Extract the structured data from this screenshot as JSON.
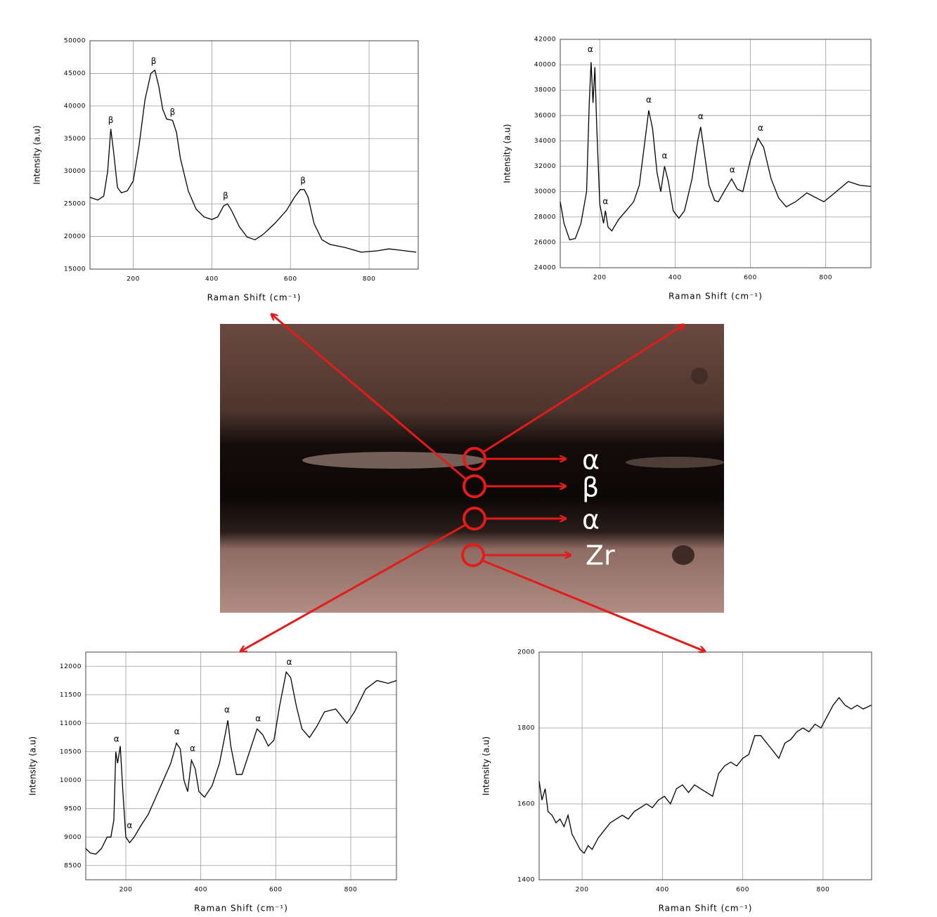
{
  "chart_data": [
    {
      "type": "line",
      "xlabel": "Raman Shift (cm⁻¹)",
      "ylabel": "Intensity (a.u)",
      "color": "#000000",
      "grid": true,
      "xlim": [
        90,
        925
      ],
      "ylim": [
        15000,
        50000
      ],
      "xticks": [
        200,
        400,
        600,
        800
      ],
      "yticks": [
        15000,
        20000,
        25000,
        30000,
        35000,
        40000,
        45000,
        50000
      ],
      "x": [
        90,
        110,
        125,
        135,
        143,
        150,
        160,
        170,
        185,
        200,
        215,
        230,
        245,
        255,
        265,
        275,
        285,
        300,
        310,
        320,
        340,
        360,
        380,
        400,
        415,
        430,
        440,
        450,
        470,
        490,
        510,
        530,
        560,
        590,
        610,
        625,
        635,
        645,
        660,
        680,
        700,
        740,
        780,
        820,
        850,
        880,
        920
      ],
      "values": [
        26000,
        25600,
        26200,
        30000,
        36500,
        33000,
        27500,
        26700,
        27000,
        28500,
        34000,
        41000,
        45000,
        45500,
        43000,
        39500,
        38000,
        37800,
        36000,
        32000,
        27000,
        24200,
        23000,
        22600,
        23000,
        24700,
        25000,
        24000,
        21500,
        19900,
        19500,
        20300,
        22000,
        24000,
        26000,
        27200,
        27200,
        26000,
        22000,
        19500,
        18800,
        18300,
        17600,
        17800,
        18100,
        17900,
        17600
      ],
      "annotations": [
        {
          "x": 143,
          "y": 37800,
          "text": "β"
        },
        {
          "x": 252,
          "y": 46800,
          "text": "β"
        },
        {
          "x": 300,
          "y": 39000,
          "text": "β"
        },
        {
          "x": 435,
          "y": 26200,
          "text": "β"
        },
        {
          "x": 632,
          "y": 28500,
          "text": "β"
        }
      ]
    },
    {
      "type": "line",
      "xlabel": "Raman Shift (cm⁻¹)",
      "ylabel": "Intensity (a.u)",
      "color": "#000000",
      "grid": true,
      "xlim": [
        95,
        920
      ],
      "ylim": [
        24000,
        42000
      ],
      "xticks": [
        200,
        400,
        600,
        800
      ],
      "yticks": [
        24000,
        26000,
        28000,
        30000,
        32000,
        34000,
        36000,
        38000,
        40000,
        42000
      ],
      "x": [
        95,
        105,
        120,
        135,
        150,
        165,
        172,
        177,
        182,
        187,
        192,
        200,
        210,
        215,
        222,
        232,
        250,
        270,
        290,
        305,
        320,
        330,
        340,
        352,
        362,
        372,
        382,
        395,
        410,
        425,
        445,
        460,
        468,
        478,
        490,
        505,
        515,
        530,
        550,
        565,
        580,
        600,
        620,
        635,
        655,
        675,
        695,
        720,
        750,
        775,
        795,
        820,
        860,
        890,
        920
      ],
      "values": [
        29200,
        27500,
        26200,
        26300,
        27500,
        30000,
        37000,
        40200,
        37000,
        39800,
        35000,
        29000,
        27500,
        28500,
        27200,
        26900,
        27800,
        28500,
        29200,
        30500,
        34000,
        36400,
        35000,
        31500,
        30000,
        32000,
        30800,
        28500,
        27900,
        28500,
        31000,
        34000,
        35100,
        33000,
        30500,
        29300,
        29200,
        30000,
        31000,
        30200,
        30000,
        32500,
        34200,
        33500,
        31000,
        29500,
        28800,
        29200,
        29900,
        29500,
        29200,
        29800,
        30800,
        30500,
        30400
      ],
      "annotations": [
        {
          "x": 175,
          "y": 41200,
          "text": "α"
        },
        {
          "x": 215,
          "y": 29200,
          "text": "α"
        },
        {
          "x": 330,
          "y": 37200,
          "text": "α"
        },
        {
          "x": 372,
          "y": 32800,
          "text": "α"
        },
        {
          "x": 468,
          "y": 35900,
          "text": "α"
        },
        {
          "x": 552,
          "y": 31700,
          "text": "α"
        },
        {
          "x": 627,
          "y": 35000,
          "text": "α"
        }
      ]
    },
    {
      "type": "line",
      "xlabel": "Raman Shift (cm⁻¹)",
      "ylabel": "Intensity (a.u)",
      "color": "#000000",
      "grid": true,
      "xlim": [
        93,
        922
      ],
      "ylim": [
        8250,
        12250
      ],
      "xticks": [
        200,
        400,
        600,
        800
      ],
      "yticks": [
        8500,
        9000,
        9500,
        10000,
        10500,
        11000,
        11500,
        12000
      ],
      "x": [
        93,
        105,
        120,
        135,
        150,
        160,
        168,
        173,
        178,
        185,
        192,
        200,
        210,
        222,
        240,
        260,
        280,
        300,
        320,
        335,
        345,
        355,
        365,
        375,
        385,
        395,
        410,
        430,
        450,
        465,
        472,
        480,
        495,
        510,
        530,
        550,
        565,
        580,
        595,
        610,
        628,
        640,
        655,
        670,
        690,
        710,
        730,
        760,
        790,
        810,
        840,
        870,
        900,
        922
      ],
      "values": [
        8800,
        8720,
        8700,
        8800,
        9000,
        9000,
        9300,
        10500,
        10300,
        10600,
        9800,
        9000,
        8900,
        9000,
        9200,
        9400,
        9700,
        10000,
        10300,
        10650,
        10550,
        10000,
        9800,
        10350,
        10200,
        9800,
        9700,
        9900,
        10300,
        10800,
        11050,
        10600,
        10100,
        10100,
        10500,
        10900,
        10800,
        10600,
        10700,
        11300,
        11900,
        11800,
        11300,
        10900,
        10750,
        10950,
        11200,
        11250,
        11000,
        11200,
        11600,
        11750,
        11700,
        11750
      ],
      "annotations": [
        {
          "x": 175,
          "y": 10720,
          "text": "α"
        },
        {
          "x": 210,
          "y": 9200,
          "text": "α"
        },
        {
          "x": 336,
          "y": 10850,
          "text": "α"
        },
        {
          "x": 378,
          "y": 10550,
          "text": "α"
        },
        {
          "x": 470,
          "y": 11230,
          "text": "α"
        },
        {
          "x": 553,
          "y": 11080,
          "text": "α"
        },
        {
          "x": 636,
          "y": 12070,
          "text": "α"
        }
      ]
    },
    {
      "type": "line",
      "xlabel": "Raman Shift (cm⁻¹)",
      "ylabel": "Intensity (a.u)",
      "color": "#000000",
      "grid": true,
      "xlim": [
        93,
        921
      ],
      "ylim": [
        1400,
        2000
      ],
      "xticks": [
        200,
        400,
        600,
        800
      ],
      "yticks": [
        1400,
        1600,
        1800,
        2000
      ],
      "x": [
        93,
        100,
        108,
        115,
        125,
        135,
        145,
        155,
        165,
        175,
        185,
        195,
        205,
        215,
        225,
        240,
        255,
        270,
        285,
        300,
        315,
        330,
        345,
        360,
        375,
        390,
        405,
        420,
        435,
        450,
        465,
        480,
        495,
        510,
        525,
        540,
        555,
        570,
        585,
        600,
        615,
        630,
        645,
        660,
        675,
        690,
        705,
        720,
        735,
        750,
        765,
        780,
        795,
        810,
        825,
        840,
        855,
        870,
        885,
        900,
        920
      ],
      "values": [
        1660,
        1610,
        1640,
        1580,
        1570,
        1550,
        1560,
        1540,
        1570,
        1520,
        1500,
        1480,
        1470,
        1490,
        1480,
        1510,
        1530,
        1550,
        1560,
        1570,
        1560,
        1580,
        1590,
        1600,
        1590,
        1610,
        1620,
        1600,
        1640,
        1650,
        1630,
        1650,
        1640,
        1630,
        1620,
        1680,
        1700,
        1710,
        1700,
        1720,
        1730,
        1780,
        1780,
        1760,
        1740,
        1720,
        1760,
        1770,
        1790,
        1800,
        1790,
        1810,
        1800,
        1830,
        1860,
        1880,
        1860,
        1850,
        1860,
        1850,
        1860
      ],
      "annotations": []
    }
  ],
  "micrograph": {
    "labels": [
      "α",
      "β",
      "α",
      "Zr"
    ]
  }
}
